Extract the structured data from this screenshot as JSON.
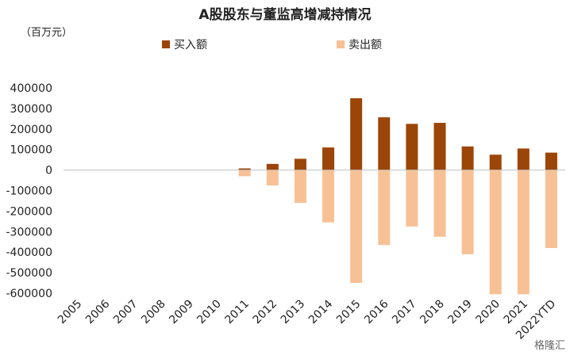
{
  "chart_data": {
    "type": "bar",
    "title": "A股股东与董监高增减持情况",
    "unit_label": "（百万元）",
    "categories": [
      "2005",
      "2006",
      "2007",
      "2008",
      "2009",
      "2010",
      "2011",
      "2012",
      "2013",
      "2014",
      "2015",
      "2016",
      "2017",
      "2018",
      "2019",
      "2020",
      "2021",
      "2022YTD"
    ],
    "series": [
      {
        "name": "买入额",
        "color": "#9c4508",
        "values": [
          0,
          0,
          0,
          0,
          0,
          0,
          8000,
          30000,
          55000,
          110000,
          350000,
          257000,
          225000,
          230000,
          115000,
          75000,
          105000,
          85000
        ]
      },
      {
        "name": "卖出额",
        "color": "#f7c195",
        "values": [
          0,
          0,
          0,
          0,
          0,
          0,
          -30000,
          -75000,
          -160000,
          -255000,
          -550000,
          -365000,
          -275000,
          -325000,
          -410000,
          -605000,
          -605000,
          -380000
        ]
      }
    ],
    "ylim": [
      -600000,
      400000
    ],
    "yticks": [
      400000,
      300000,
      200000,
      100000,
      0,
      -100000,
      -200000,
      -300000,
      -400000,
      -500000,
      -600000
    ],
    "legend_position": "top-center",
    "grid": false
  },
  "watermark": "格隆汇"
}
